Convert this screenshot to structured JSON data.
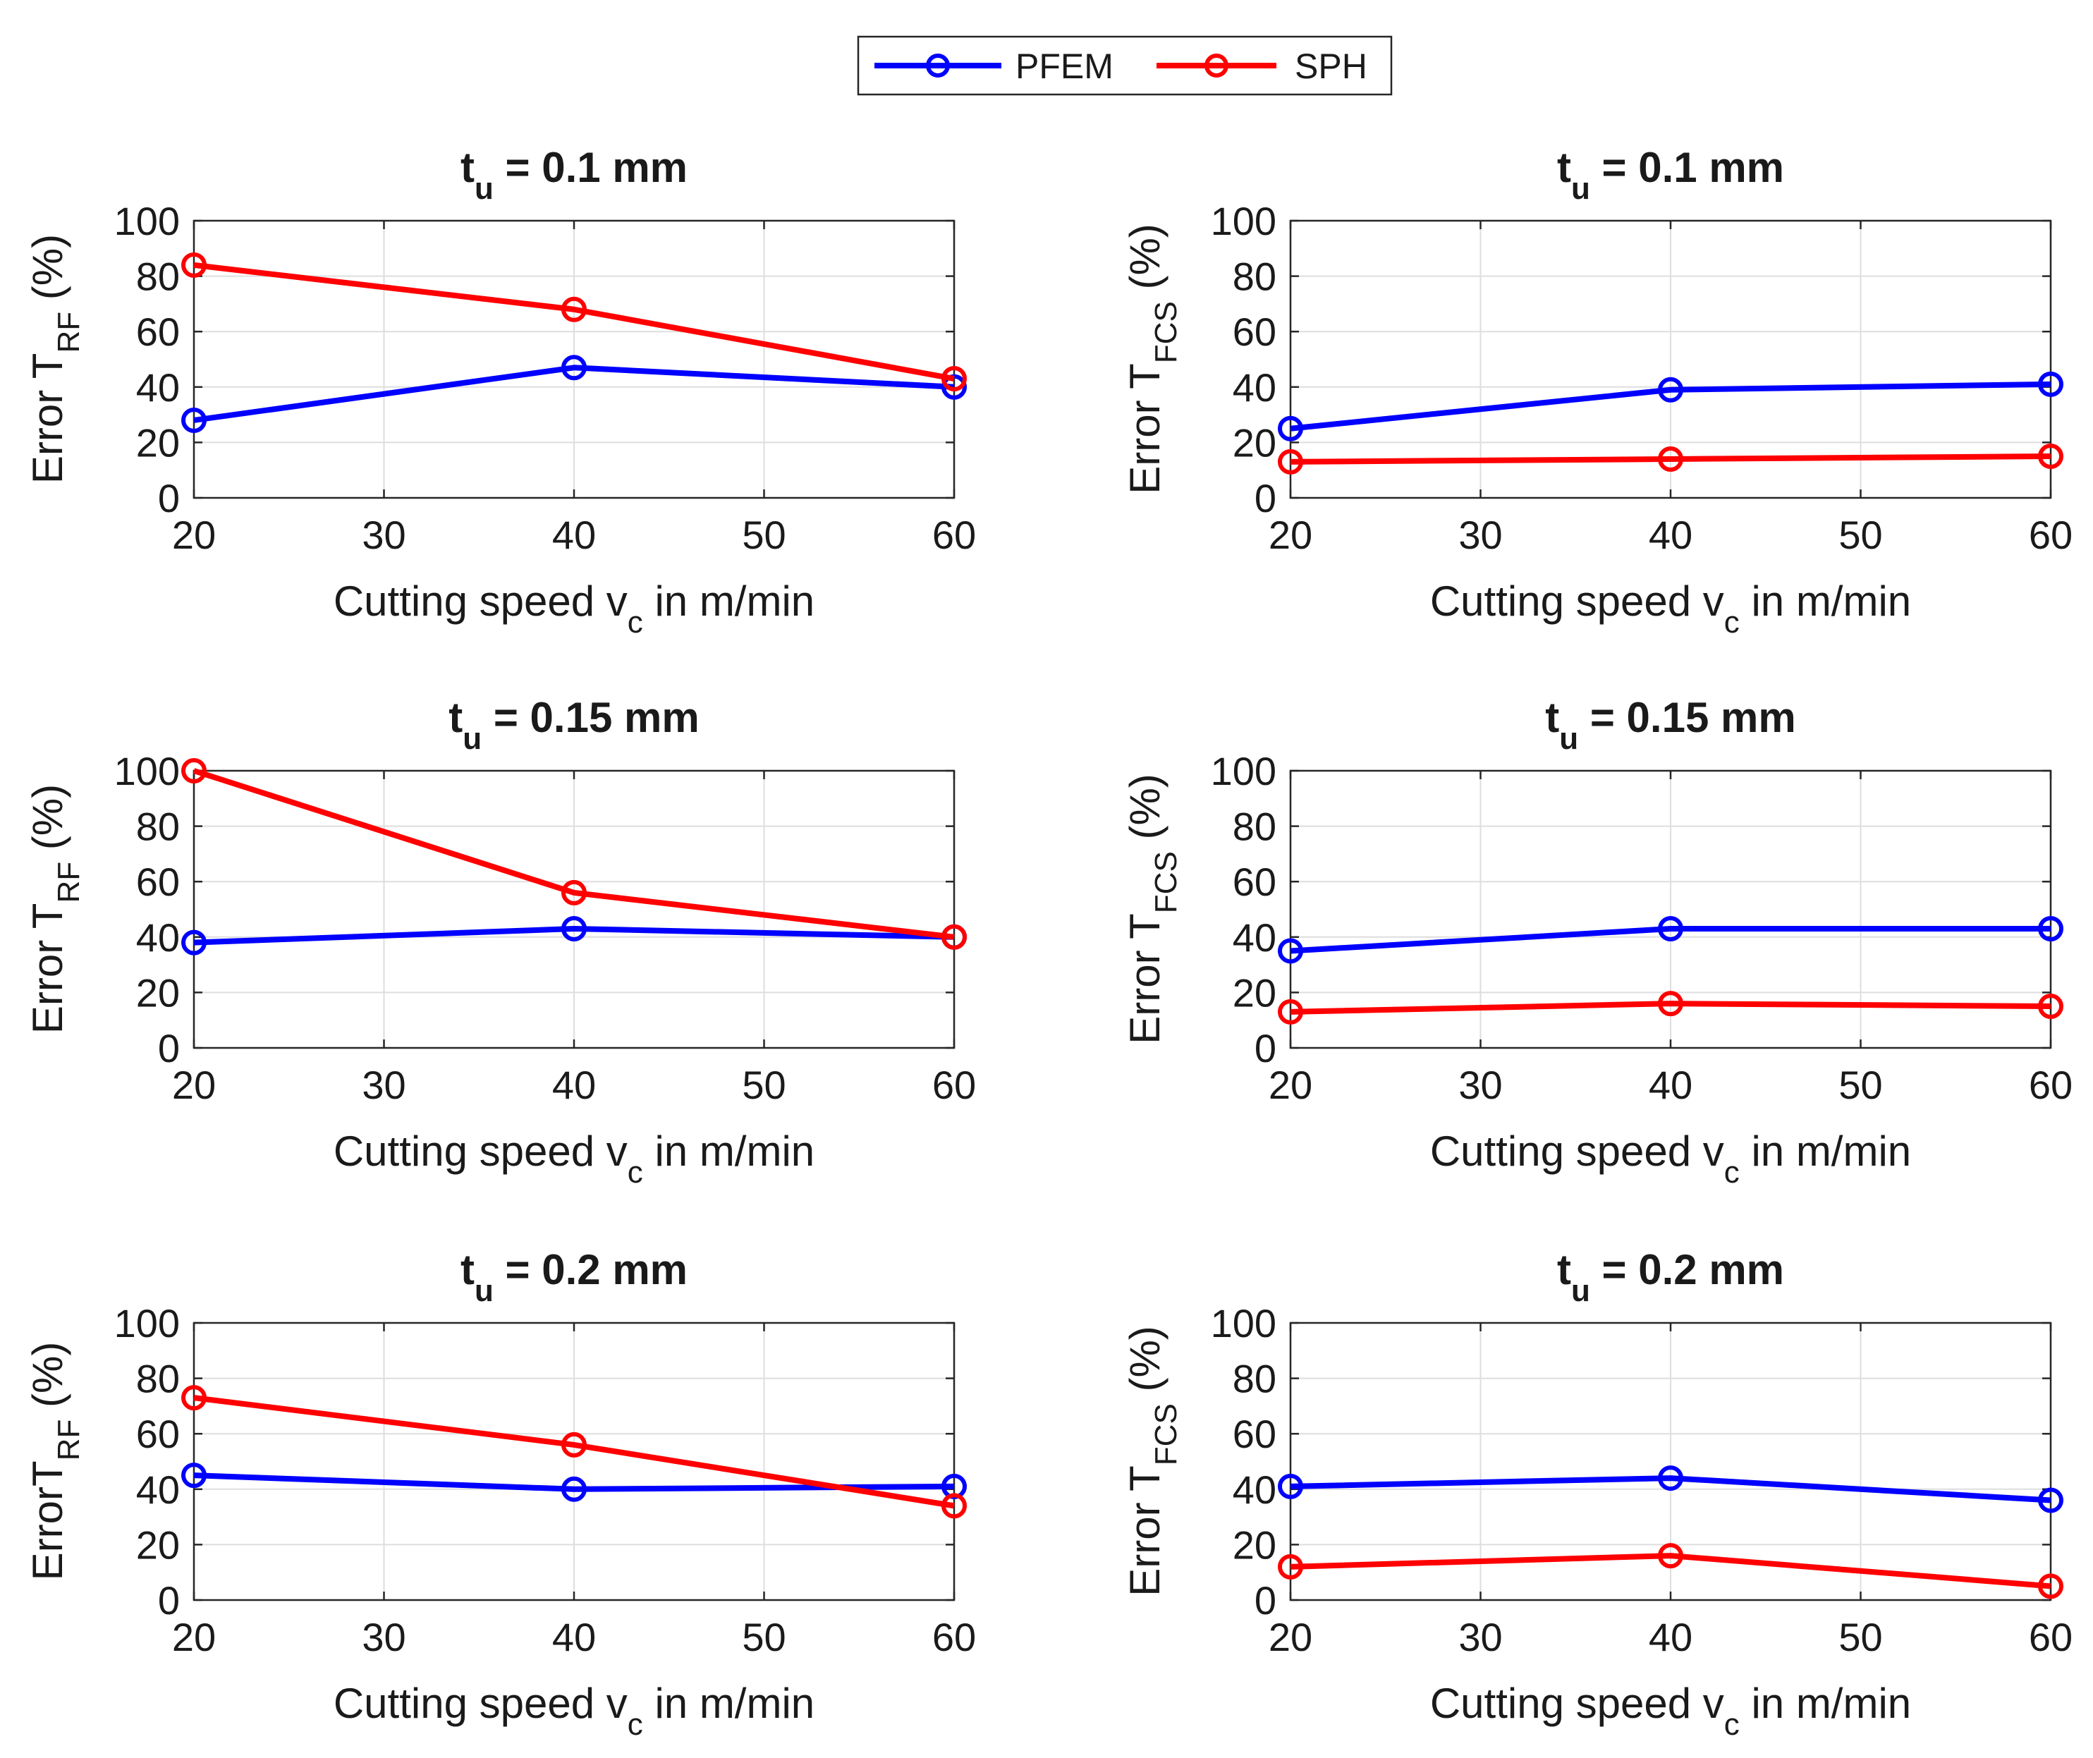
{
  "legend": {
    "entries": [
      {
        "name": "PFEM",
        "color": "#0000ff"
      },
      {
        "name": "SPH",
        "color": "#ff0000"
      }
    ]
  },
  "chart_data": [
    {
      "type": "line",
      "title": {
        "main": "t",
        "sub": "u",
        "rest": " = 0.1 mm"
      },
      "xlabel": {
        "main": "Cutting speed v",
        "sub": "c",
        "rest": " in m/min"
      },
      "ylabel": {
        "main": "Error T",
        "sub": "RF",
        "rest": " (%)"
      },
      "x": [
        20,
        40,
        60
      ],
      "xlim": [
        20,
        60
      ],
      "ylim": [
        0,
        100
      ],
      "xticks": [
        20,
        30,
        40,
        50,
        60
      ],
      "yticks": [
        0,
        20,
        40,
        60,
        80,
        100
      ],
      "grid": true,
      "series": [
        {
          "name": "PFEM",
          "values": [
            28,
            47,
            40
          ]
        },
        {
          "name": "SPH",
          "values": [
            84,
            68,
            43
          ]
        }
      ]
    },
    {
      "type": "line",
      "title": {
        "main": "t",
        "sub": "u",
        "rest": " = 0.1 mm"
      },
      "xlabel": {
        "main": "Cutting speed v",
        "sub": "c",
        "rest": " in m/min"
      },
      "ylabel": {
        "main": "Error T",
        "sub": "FCS",
        "rest": " (%)"
      },
      "x": [
        20,
        40,
        60
      ],
      "xlim": [
        20,
        60
      ],
      "ylim": [
        0,
        100
      ],
      "xticks": [
        20,
        30,
        40,
        50,
        60
      ],
      "yticks": [
        0,
        20,
        40,
        60,
        80,
        100
      ],
      "grid": true,
      "series": [
        {
          "name": "PFEM",
          "values": [
            25,
            39,
            41
          ]
        },
        {
          "name": "SPH",
          "values": [
            13,
            14,
            15
          ]
        }
      ]
    },
    {
      "type": "line",
      "title": {
        "main": "t",
        "sub": "u",
        "rest": " = 0.15 mm"
      },
      "xlabel": {
        "main": "Cutting speed v",
        "sub": "c",
        "rest": " in m/min"
      },
      "ylabel": {
        "main": "Error T",
        "sub": "RF",
        "rest": " (%)"
      },
      "x": [
        20,
        40,
        60
      ],
      "xlim": [
        20,
        60
      ],
      "ylim": [
        0,
        100
      ],
      "xticks": [
        20,
        30,
        40,
        50,
        60
      ],
      "yticks": [
        0,
        20,
        40,
        60,
        80,
        100
      ],
      "grid": true,
      "series": [
        {
          "name": "PFEM",
          "values": [
            38,
            43,
            40
          ]
        },
        {
          "name": "SPH",
          "values": [
            100,
            56,
            40
          ]
        }
      ]
    },
    {
      "type": "line",
      "title": {
        "main": "t",
        "sub": "u",
        "rest": " = 0.15 mm"
      },
      "xlabel": {
        "main": "Cutting speed v",
        "sub": "c",
        "rest": " in m/min"
      },
      "ylabel": {
        "main": "Error T",
        "sub": "FCS",
        "rest": " (%)"
      },
      "x": [
        20,
        40,
        60
      ],
      "xlim": [
        20,
        60
      ],
      "ylim": [
        0,
        100
      ],
      "xticks": [
        20,
        30,
        40,
        50,
        60
      ],
      "yticks": [
        0,
        20,
        40,
        60,
        80,
        100
      ],
      "grid": true,
      "series": [
        {
          "name": "PFEM",
          "values": [
            35,
            43,
            43
          ]
        },
        {
          "name": "SPH",
          "values": [
            13,
            16,
            15
          ]
        }
      ]
    },
    {
      "type": "line",
      "title": {
        "main": "t",
        "sub": "u",
        "rest": " = 0.2 mm"
      },
      "xlabel": {
        "main": "Cutting speed v",
        "sub": "c",
        "rest": " in m/min"
      },
      "ylabel": {
        "main": "ErrorT",
        "sub": "RF",
        "rest": " (%)"
      },
      "x": [
        20,
        40,
        60
      ],
      "xlim": [
        20,
        60
      ],
      "ylim": [
        0,
        100
      ],
      "xticks": [
        20,
        30,
        40,
        50,
        60
      ],
      "yticks": [
        0,
        20,
        40,
        60,
        80,
        100
      ],
      "grid": true,
      "series": [
        {
          "name": "PFEM",
          "values": [
            45,
            40,
            41
          ]
        },
        {
          "name": "SPH",
          "values": [
            73,
            56,
            34
          ]
        }
      ]
    },
    {
      "type": "line",
      "title": {
        "main": "t",
        "sub": "u",
        "rest": " = 0.2 mm"
      },
      "xlabel": {
        "main": "Cutting speed v",
        "sub": "c",
        "rest": " in m/min"
      },
      "ylabel": {
        "main": "Error T",
        "sub": "FCS",
        "rest": " (%)"
      },
      "x": [
        20,
        40,
        60
      ],
      "xlim": [
        20,
        60
      ],
      "ylim": [
        0,
        100
      ],
      "xticks": [
        20,
        30,
        40,
        50,
        60
      ],
      "yticks": [
        0,
        20,
        40,
        60,
        80,
        100
      ],
      "grid": true,
      "series": [
        {
          "name": "PFEM",
          "values": [
            41,
            44,
            36
          ]
        },
        {
          "name": "SPH",
          "values": [
            12,
            16,
            5
          ]
        }
      ]
    }
  ]
}
